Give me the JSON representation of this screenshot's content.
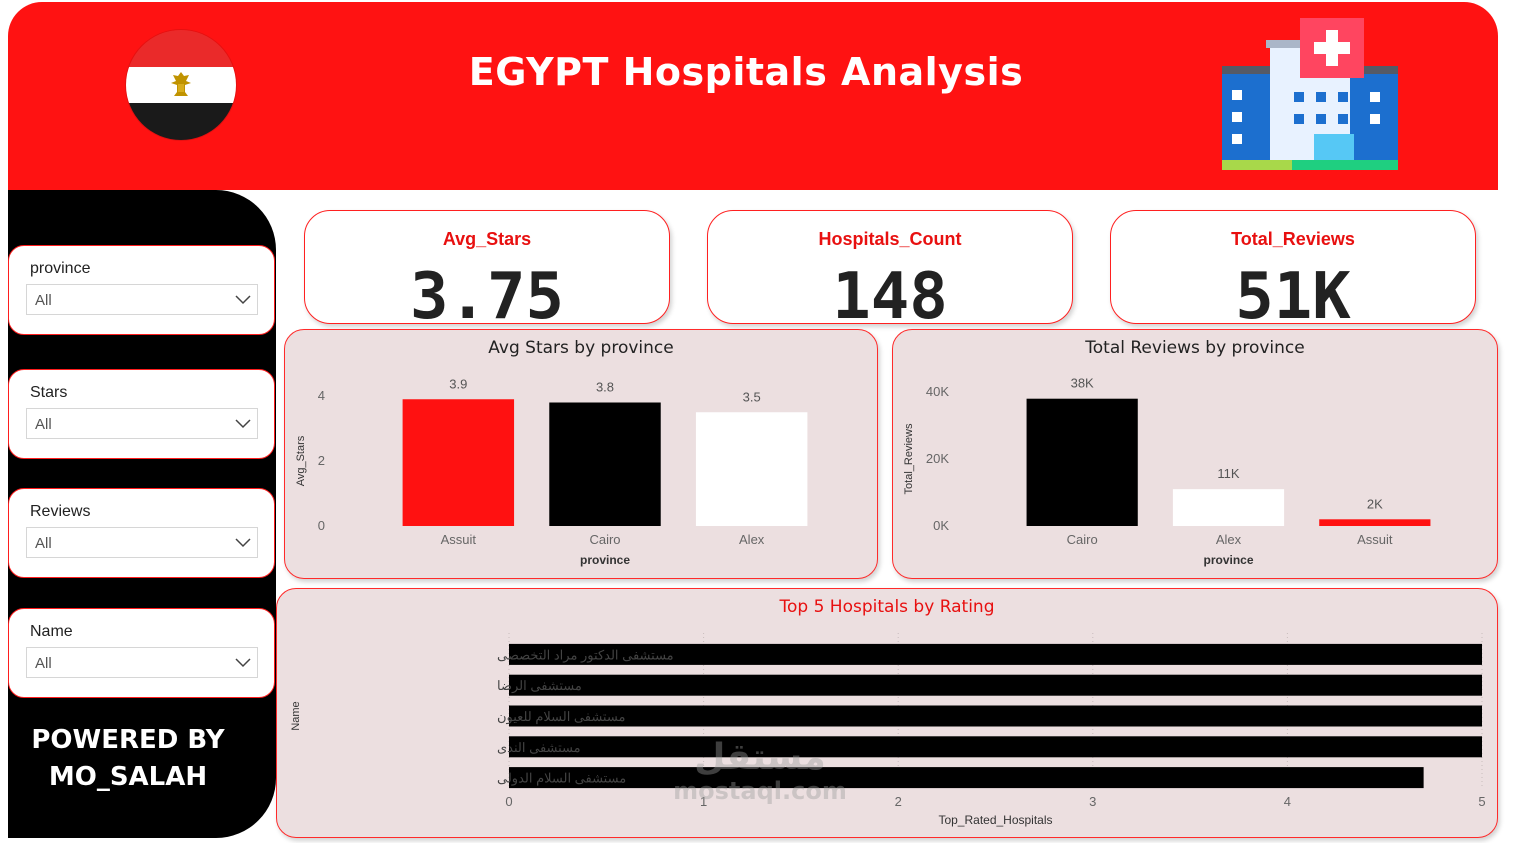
{
  "header": {
    "title": "EGYPT Hospitals Analysis"
  },
  "icons": {
    "flag": "egypt-flag-icon",
    "hospital": "hospital-building-icon",
    "dropdown": "chevron-down-icon"
  },
  "colors": {
    "header_red": "#ff1212",
    "kpi_title": "#e81010",
    "panel_bg": "#ecdfe0",
    "sidebar": "#000000"
  },
  "slicers": [
    {
      "label": "province",
      "value": "All"
    },
    {
      "label": "Stars",
      "value": "All"
    },
    {
      "label": "Reviews",
      "value": "All"
    },
    {
      "label": "Name",
      "value": "All"
    }
  ],
  "footer": {
    "line1": "POWERED BY",
    "line2": "MO_SALAH"
  },
  "kpis": [
    {
      "title": "Avg_Stars",
      "value": "3.75"
    },
    {
      "title": "Hospitals_Count",
      "value": "148"
    },
    {
      "title": "Total_Reviews",
      "value": "51K"
    }
  ],
  "watermark": {
    "arabic": "مستقل",
    "latin": "mostaql.com"
  },
  "chart_data": [
    {
      "type": "bar",
      "title": "Avg Stars by province",
      "xlabel": "province",
      "ylabel": "Avg_Stars",
      "categories": [
        "Assuit",
        "Cairo",
        "Alex"
      ],
      "values": [
        3.9,
        3.8,
        3.5
      ],
      "data_labels": [
        "3.9",
        "3.8",
        "3.5"
      ],
      "bar_colors": [
        "#ff1111",
        "#000000",
        "#ffffff"
      ],
      "ylim": [
        0,
        4
      ],
      "yticks": [
        0,
        2,
        4
      ],
      "ytick_labels": [
        "0",
        "2",
        "4"
      ]
    },
    {
      "type": "bar",
      "title": "Total Reviews by province",
      "xlabel": "province",
      "ylabel": "Total_Reviews",
      "categories": [
        "Cairo",
        "Alex",
        "Assuit"
      ],
      "values": [
        38000,
        11000,
        2000
      ],
      "data_labels": [
        "38K",
        "11K",
        "2K"
      ],
      "bar_colors": [
        "#000000",
        "#ffffff",
        "#ff1111"
      ],
      "ylim": [
        0,
        40000
      ],
      "yticks": [
        0,
        20000,
        40000
      ],
      "ytick_labels": [
        "0K",
        "20K",
        "40K"
      ]
    },
    {
      "type": "bar",
      "orientation": "horizontal",
      "title": "Top 5 Hospitals by Rating",
      "xlabel": "Top_Rated_Hospitals",
      "ylabel": "Name",
      "categories": [
        "مستشفى الدكتور مراد التخصصى",
        "مستشفى الرضا",
        "مستشفى السلام للعيون",
        "مستشفى الندى",
        "مستشفى السلام الدولى"
      ],
      "values": [
        5,
        5,
        5,
        5,
        4.7
      ],
      "bar_colors": [
        "#000000"
      ],
      "xlim": [
        0,
        5
      ],
      "xticks": [
        0,
        1,
        2,
        3,
        4,
        5
      ],
      "xtick_labels": [
        "0",
        "1",
        "2",
        "3",
        "4",
        "5"
      ]
    }
  ]
}
